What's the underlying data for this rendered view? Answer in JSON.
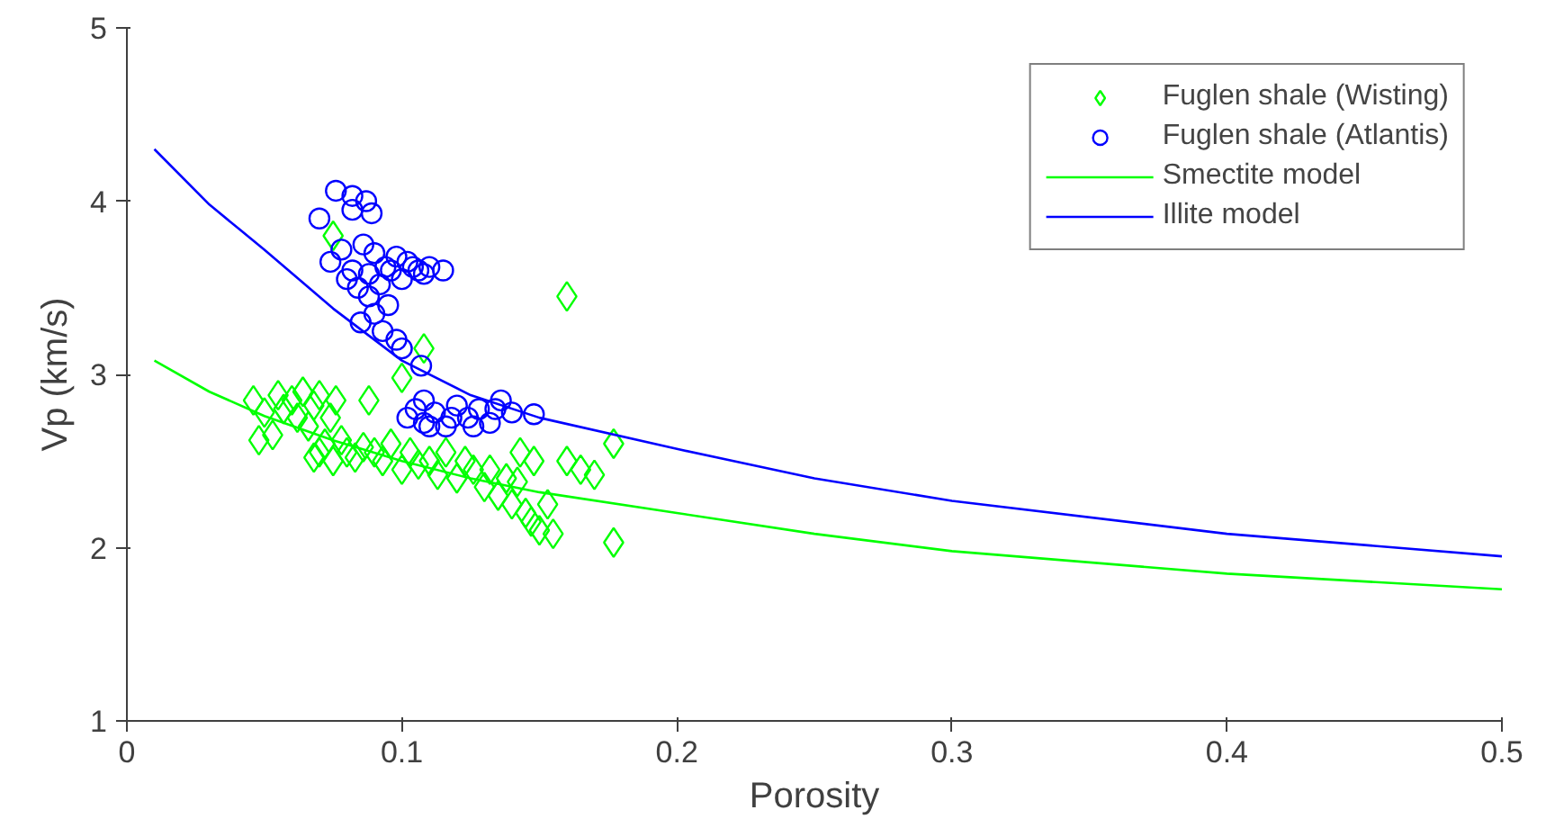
{
  "chart_data": {
    "type": "scatter",
    "xlabel": "Porosity",
    "ylabel": "Vp (km/s)",
    "xlim": [
      0,
      0.5
    ],
    "ylim": [
      1,
      5
    ],
    "xticks": [
      0,
      0.1,
      0.2,
      0.3,
      0.4,
      0.5
    ],
    "yticks": [
      1,
      2,
      3,
      4,
      5
    ],
    "grid": false,
    "legend": "top right",
    "series": [
      {
        "name": "Fuglen shale (Wisting)",
        "marker": "diamond",
        "color": "#00ff00",
        "x": [
          0.046,
          0.048,
          0.05,
          0.053,
          0.055,
          0.057,
          0.06,
          0.062,
          0.064,
          0.066,
          0.068,
          0.07,
          0.072,
          0.074,
          0.076,
          0.068,
          0.07,
          0.075,
          0.078,
          0.08,
          0.083,
          0.086,
          0.09,
          0.093,
          0.096,
          0.1,
          0.103,
          0.106,
          0.11,
          0.113,
          0.116,
          0.12,
          0.123,
          0.126,
          0.13,
          0.132,
          0.135,
          0.138,
          0.14,
          0.142,
          0.145,
          0.147,
          0.15,
          0.153,
          0.155,
          0.143,
          0.148,
          0.16,
          0.165,
          0.17,
          0.16,
          0.177,
          0.177,
          0.075,
          0.1,
          0.108,
          0.088
        ],
        "values": [
          2.85,
          2.62,
          2.78,
          2.65,
          2.88,
          2.8,
          2.85,
          2.75,
          2.9,
          2.7,
          2.82,
          2.88,
          2.6,
          2.75,
          2.85,
          2.52,
          2.55,
          2.5,
          2.62,
          2.55,
          2.52,
          2.58,
          2.55,
          2.5,
          2.6,
          2.45,
          2.55,
          2.48,
          2.5,
          2.42,
          2.55,
          2.4,
          2.5,
          2.45,
          2.35,
          2.45,
          2.3,
          2.4,
          2.25,
          2.38,
          2.2,
          2.15,
          2.1,
          2.25,
          2.08,
          2.55,
          2.5,
          2.5,
          2.45,
          2.42,
          3.45,
          2.6,
          2.03,
          3.8,
          2.98,
          3.15,
          2.85
        ]
      },
      {
        "name": "Fuglen shale (Atlantis)",
        "marker": "circle",
        "color": "#0000ff",
        "x": [
          0.07,
          0.076,
          0.082,
          0.087,
          0.082,
          0.089,
          0.074,
          0.078,
          0.082,
          0.086,
          0.09,
          0.094,
          0.098,
          0.102,
          0.106,
          0.11,
          0.115,
          0.08,
          0.084,
          0.088,
          0.092,
          0.096,
          0.1,
          0.104,
          0.108,
          0.085,
          0.088,
          0.09,
          0.093,
          0.095,
          0.098,
          0.1,
          0.107,
          0.108,
          0.102,
          0.105,
          0.108,
          0.112,
          0.116,
          0.12,
          0.124,
          0.128,
          0.132,
          0.136,
          0.14,
          0.148,
          0.11,
          0.118,
          0.126,
          0.134
        ],
        "values": [
          3.9,
          4.06,
          4.03,
          4.0,
          3.95,
          3.93,
          3.65,
          3.72,
          3.6,
          3.75,
          3.7,
          3.62,
          3.68,
          3.65,
          3.6,
          3.62,
          3.6,
          3.55,
          3.5,
          3.58,
          3.52,
          3.6,
          3.55,
          3.62,
          3.58,
          3.3,
          3.45,
          3.35,
          3.25,
          3.4,
          3.2,
          3.15,
          3.05,
          2.85,
          2.75,
          2.8,
          2.72,
          2.78,
          2.7,
          2.82,
          2.75,
          2.8,
          2.72,
          2.85,
          2.78,
          2.77,
          2.7,
          2.75,
          2.7,
          2.8
        ]
      },
      {
        "name": "Smectite model",
        "type": "line",
        "color": "#00ff00",
        "x": [
          0.01,
          0.03,
          0.05,
          0.075,
          0.1,
          0.125,
          0.15,
          0.2,
          0.25,
          0.3,
          0.4,
          0.5
        ],
        "values": [
          3.08,
          2.9,
          2.76,
          2.62,
          2.5,
          2.4,
          2.32,
          2.2,
          2.08,
          1.98,
          1.85,
          1.76
        ]
      },
      {
        "name": "Illite model",
        "type": "line",
        "color": "#0000ff",
        "x": [
          0.01,
          0.03,
          0.05,
          0.075,
          0.1,
          0.125,
          0.15,
          0.2,
          0.25,
          0.3,
          0.4,
          0.5
        ],
        "values": [
          4.3,
          3.98,
          3.72,
          3.38,
          3.08,
          2.88,
          2.75,
          2.57,
          2.4,
          2.27,
          2.08,
          1.95
        ]
      }
    ]
  }
}
